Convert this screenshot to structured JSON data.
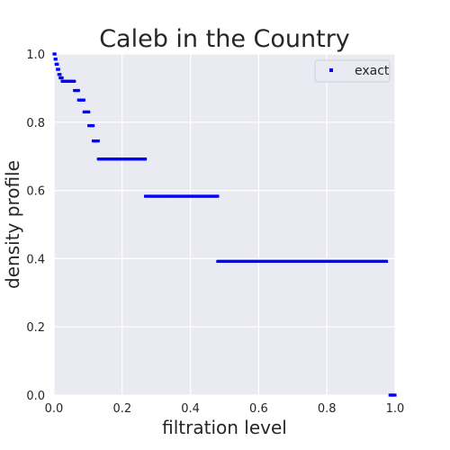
{
  "chart_data": {
    "type": "scatter",
    "title": "Caleb in the Country",
    "xlabel": "filtration level",
    "ylabel": "density profile",
    "xlim": [
      0,
      1
    ],
    "ylim": [
      0,
      1
    ],
    "x_ticks": [
      "0.0",
      "0.2",
      "0.4",
      "0.6",
      "0.8",
      "1.0"
    ],
    "y_ticks": [
      "0.0",
      "0.2",
      "0.4",
      "0.6",
      "0.8",
      "1.0"
    ],
    "grid": true,
    "legend": {
      "position": "top-right",
      "entries": [
        "exact"
      ]
    },
    "series": [
      {
        "name": "exact",
        "color": "#0000ff",
        "segments": [
          {
            "x_start": 0.0,
            "x_end": 0.003,
            "y": 1.0
          },
          {
            "x_start": 0.003,
            "x_end": 0.006,
            "y": 0.985
          },
          {
            "x_start": 0.006,
            "x_end": 0.01,
            "y": 0.97
          },
          {
            "x_start": 0.01,
            "x_end": 0.014,
            "y": 0.955
          },
          {
            "x_start": 0.014,
            "x_end": 0.018,
            "y": 0.94
          },
          {
            "x_start": 0.018,
            "x_end": 0.024,
            "y": 0.93
          },
          {
            "x_start": 0.024,
            "x_end": 0.06,
            "y": 0.92
          },
          {
            "x_start": 0.06,
            "x_end": 0.072,
            "y": 0.893
          },
          {
            "x_start": 0.072,
            "x_end": 0.088,
            "y": 0.865
          },
          {
            "x_start": 0.088,
            "x_end": 0.102,
            "y": 0.83
          },
          {
            "x_start": 0.102,
            "x_end": 0.115,
            "y": 0.79
          },
          {
            "x_start": 0.115,
            "x_end": 0.13,
            "y": 0.745
          },
          {
            "x_start": 0.13,
            "x_end": 0.268,
            "y": 0.692
          },
          {
            "x_start": 0.268,
            "x_end": 0.48,
            "y": 0.583
          },
          {
            "x_start": 0.48,
            "x_end": 0.975,
            "y": 0.392
          },
          {
            "x_start": 0.985,
            "x_end": 1.0,
            "y": 0.0
          }
        ]
      }
    ]
  }
}
